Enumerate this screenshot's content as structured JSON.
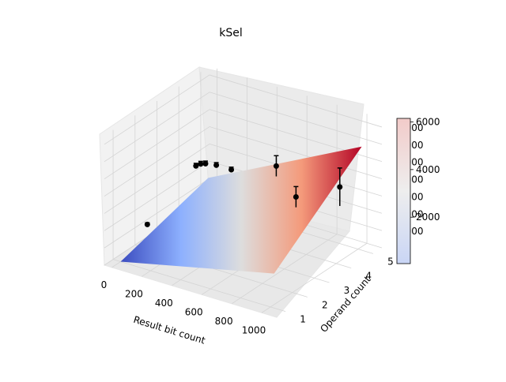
{
  "chart_data": {
    "type": "surface3d",
    "title": "kSel",
    "xlabel": "Result bit count",
    "ylabel": "Operand count",
    "zlabel": "",
    "x_ticks": [
      0,
      200,
      400,
      600,
      800,
      1000
    ],
    "y_ticks": [
      1,
      2,
      3,
      4,
      5
    ],
    "z_ticks": [
      0,
      1000,
      2000,
      3000,
      4000,
      5000,
      6000,
      7000
    ],
    "xlim": [
      -50,
      1100
    ],
    "ylim": [
      0.6,
      5.4
    ],
    "zlim": [
      0,
      7500
    ],
    "grid": true,
    "surface": {
      "description_of_plane": "fitted plane over Result bit count and Operand count",
      "corners": [
        {
          "x": 0,
          "y": 1,
          "z": 0
        },
        {
          "x": 1024,
          "y": 1,
          "z": 2000
        },
        {
          "x": 1024,
          "y": 5,
          "z": 6000
        },
        {
          "x": 0,
          "y": 5,
          "z": 1500
        }
      ],
      "colormap": "coolwarm"
    },
    "points": [
      {
        "x": 64,
        "y": 4,
        "z": 3200,
        "err": 150
      },
      {
        "x": 96,
        "y": 4,
        "z": 3400,
        "err": 150
      },
      {
        "x": 128,
        "y": 4,
        "z": 3500,
        "err": 150
      },
      {
        "x": 200,
        "y": 4,
        "z": 3600,
        "err": 150
      },
      {
        "x": 300,
        "y": 4,
        "z": 3600,
        "err": 150
      },
      {
        "x": 600,
        "y": 4,
        "z": 4600,
        "err": 600
      },
      {
        "x": 1024,
        "y": 2,
        "z": 5600,
        "err": 600
      },
      {
        "x": 1024,
        "y": 4,
        "z": 4500,
        "err": 1100
      },
      {
        "x": 32,
        "y": 2,
        "z": 1400,
        "err": 100
      }
    ],
    "colorbar": {
      "ticks": [
        2000,
        4000,
        6000
      ],
      "range": [
        50,
        6150
      ],
      "colors": [
        "#3b4cc0",
        "#dddddd",
        "#b40426"
      ]
    }
  }
}
